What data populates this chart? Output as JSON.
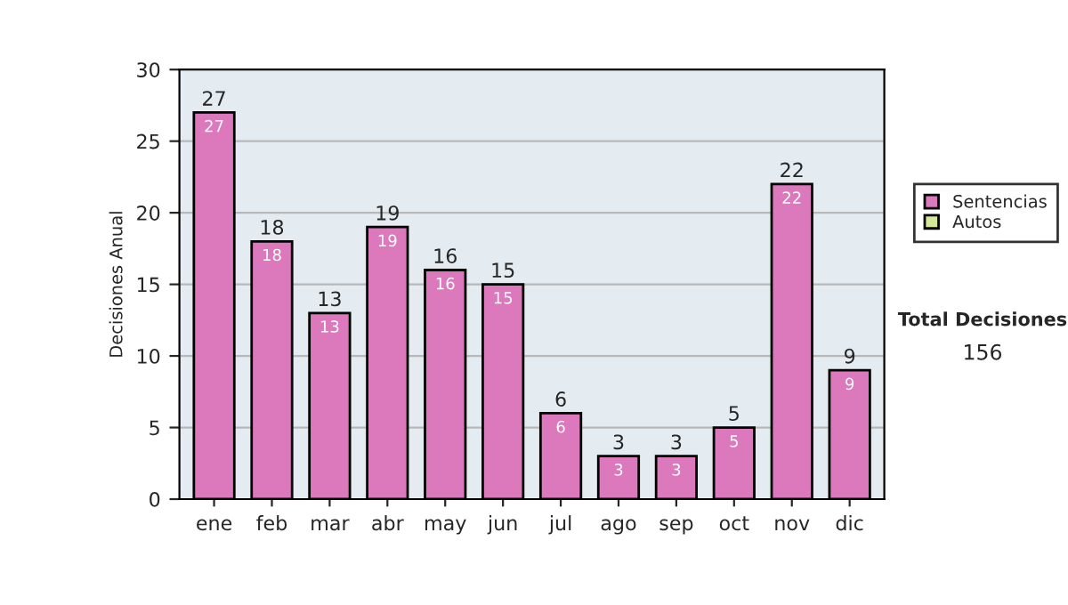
{
  "chart_data": {
    "type": "bar",
    "ylabel": "Decisiones Anual",
    "categories": [
      "ene",
      "feb",
      "mar",
      "abr",
      "may",
      "jun",
      "jul",
      "ago",
      "sep",
      "oct",
      "nov",
      "dic"
    ],
    "series": [
      {
        "name": "Sentencias",
        "color": "#dc78bc",
        "values": [
          27,
          18,
          13,
          19,
          16,
          15,
          6,
          3,
          3,
          5,
          22,
          9
        ],
        "value_labels": [
          "27",
          "18",
          "13",
          "19",
          "16",
          "15",
          "6",
          "3",
          "3",
          "5",
          "22",
          "9"
        ]
      },
      {
        "name": "Autos",
        "color": "#d4e89c",
        "values": [
          null,
          null,
          null,
          null,
          null,
          null,
          null,
          null,
          null,
          null,
          null,
          null
        ]
      }
    ],
    "totals": [
      "27",
      "18",
      "13",
      "19",
      "16",
      "15",
      "6",
      "3",
      "3",
      "5",
      "22",
      "9"
    ],
    "ylim": [
      0,
      30
    ],
    "yticks": [
      0,
      5,
      10,
      15,
      20,
      25,
      30
    ],
    "grid": "y",
    "legend": "right",
    "annotations": [
      "Total Decisiones",
      "156"
    ]
  }
}
